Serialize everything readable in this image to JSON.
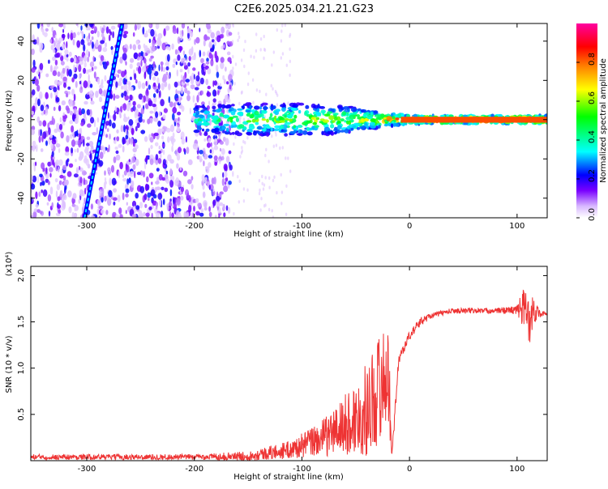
{
  "title": "C2E6.2025.034.21.21.G23",
  "chart_data": [
    {
      "type": "heatmap",
      "xlabel": "Height of straight line (km)",
      "ylabel": "Frequency (Hz)",
      "xlim": [
        -352,
        128
      ],
      "ylim": [
        -50,
        49
      ],
      "x_ticks": [
        -300,
        -200,
        -100,
        0,
        100
      ],
      "y_ticks": [
        -40,
        -20,
        0,
        20,
        40
      ],
      "colorbar": {
        "label": "Normalized spectral amplitude",
        "range": [
          0,
          1
        ],
        "ticks": [
          "0.0",
          "0.2",
          "0.4",
          "0.6",
          "0.8"
        ],
        "tick_values": [
          0,
          0.2,
          0.4,
          0.6,
          0.8
        ],
        "colors": [
          "#ffffff",
          "#d8b8ff",
          "#7a00ff",
          "#0000ff",
          "#00ffff",
          "#00ff00",
          "#ffff00",
          "#ff8000",
          "#ff0000",
          "#ff00a0"
        ]
      },
      "features": {
        "noise_region_x": [
          -352,
          -165
        ],
        "diagonal_line": {
          "x_start": -302,
          "y_start": -50,
          "x_end": -267,
          "y_end": 49
        },
        "band": [
          {
            "x": -200,
            "half_width": 7,
            "amp": 0.3
          },
          {
            "x": -150,
            "half_width": 8,
            "amp": 0.45
          },
          {
            "x": -100,
            "half_width": 8,
            "amp": 0.5
          },
          {
            "x": -60,
            "half_width": 7,
            "amp": 0.5
          },
          {
            "x": -30,
            "half_width": 4,
            "amp": 0.6
          },
          {
            "x": 0,
            "half_width": 2,
            "amp": 0.9
          },
          {
            "x": 128,
            "half_width": 2,
            "amp": 0.9
          }
        ]
      }
    },
    {
      "type": "line",
      "xlabel": "Height of straight line (km)",
      "ylabel": "SNR (10 * v/v)",
      "multiplier": "(x10⁴)",
      "xlim": [
        -352,
        128
      ],
      "ylim": [
        0,
        2.1
      ],
      "x_ticks": [
        -300,
        -200,
        -100,
        0,
        100
      ],
      "y_ticks": [
        "0.5",
        "1.0",
        "1.5",
        "2.0"
      ],
      "y_tick_values": [
        0.5,
        1.0,
        1.5,
        2.0
      ],
      "color": "#ee3333",
      "envelope": {
        "x": [
          -352,
          -200,
          -150,
          -110,
          -80,
          -50,
          -40,
          -30,
          -20,
          -16,
          -10,
          0,
          10,
          20,
          40,
          60,
          80,
          100,
          105,
          110,
          115,
          120,
          128
        ],
        "mean": [
          0.04,
          0.04,
          0.05,
          0.12,
          0.25,
          0.45,
          0.55,
          0.75,
          0.95,
          0.1,
          1.1,
          1.35,
          1.5,
          1.57,
          1.62,
          1.62,
          1.62,
          1.63,
          1.65,
          1.55,
          1.62,
          1.6,
          1.57
        ],
        "spread": [
          0.03,
          0.03,
          0.05,
          0.1,
          0.2,
          0.4,
          0.5,
          0.6,
          0.55,
          0.08,
          0.06,
          0.05,
          0.05,
          0.03,
          0.03,
          0.03,
          0.03,
          0.05,
          0.2,
          0.4,
          0.15,
          0.05,
          0.03
        ]
      }
    }
  ]
}
